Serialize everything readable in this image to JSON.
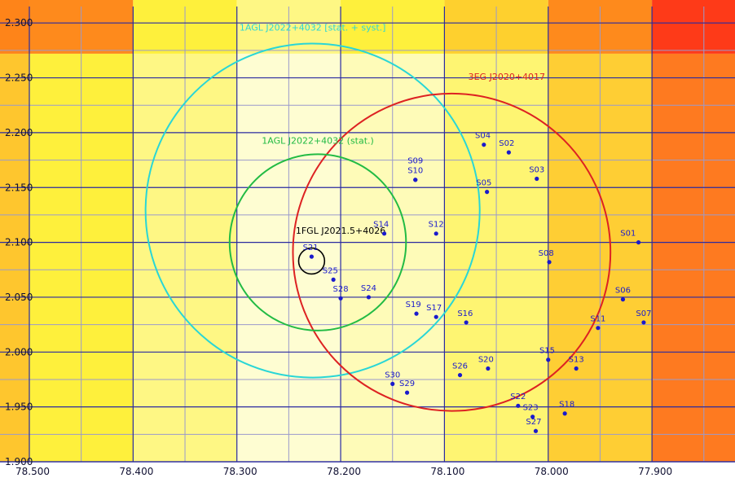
{
  "chart_data": {
    "type": "scatter",
    "title": "",
    "xlabel": "",
    "ylabel": "",
    "xlim": [
      78.5,
      77.82
    ],
    "ylim": [
      1.9,
      2.315
    ],
    "x_ticks": [
      {
        "value": 78.5,
        "label": "78.500"
      },
      {
        "value": 78.4,
        "label": "78.400"
      },
      {
        "value": 78.3,
        "label": "78.300"
      },
      {
        "value": 78.2,
        "label": "78.200"
      },
      {
        "value": 78.1,
        "label": "78.100"
      },
      {
        "value": 78.0,
        "label": "78.000"
      },
      {
        "value": 77.9,
        "label": "77.900"
      }
    ],
    "y_ticks": [
      {
        "value": 2.3,
        "label": "2.300"
      },
      {
        "value": 2.25,
        "label": "2.250"
      },
      {
        "value": 2.2,
        "label": "2.200"
      },
      {
        "value": 2.15,
        "label": "2.150"
      },
      {
        "value": 2.1,
        "label": "2.100"
      },
      {
        "value": 2.05,
        "label": "2.050"
      },
      {
        "value": 2.0,
        "label": "2.000"
      },
      {
        "value": 1.95,
        "label": "1.950"
      },
      {
        "value": 1.9,
        "label": "1.900"
      }
    ],
    "minor_x_grid": [
      78.45,
      78.35,
      78.25,
      78.15,
      78.05,
      77.95,
      77.85
    ],
    "minor_y_grid": [
      2.275,
      2.225,
      2.175,
      2.125,
      2.075,
      2.025,
      1.975,
      1.925
    ],
    "background_bands": [
      {
        "x_from": 78.5,
        "x_to": 78.4,
        "color": "#fef03c"
      },
      {
        "x_from": 78.4,
        "x_to": 78.3,
        "color": "#fef784"
      },
      {
        "x_from": 78.3,
        "x_to": 78.2,
        "color": "#fefdd2"
      },
      {
        "x_from": 78.2,
        "x_to": 78.1,
        "color": "#fefbb8"
      },
      {
        "x_from": 78.1,
        "x_to": 78.0,
        "color": "#fef572"
      },
      {
        "x_from": 78.0,
        "x_to": 77.9,
        "color": "#fece34"
      },
      {
        "x_from": 77.9,
        "x_to": 77.82,
        "color": "#fe7a20"
      }
    ],
    "top_strip": [
      {
        "x_from": 78.5,
        "x_to": 78.4,
        "color": "#fe8a1c"
      },
      {
        "x_from": 78.4,
        "x_to": 78.3,
        "color": "#fef03c"
      },
      {
        "x_from": 78.3,
        "x_to": 78.2,
        "color": "#fef784"
      },
      {
        "x_from": 78.2,
        "x_to": 78.1,
        "color": "#fef03c"
      },
      {
        "x_from": 78.1,
        "x_to": 78.0,
        "color": "#fed02e"
      },
      {
        "x_from": 78.0,
        "x_to": 77.9,
        "color": "#fe8a1c"
      },
      {
        "x_from": 77.9,
        "x_to": 77.82,
        "color": "#fe3a18"
      }
    ],
    "circles": [
      {
        "name": "1AGL J2022+4032 [stat. + syst.]",
        "cx": 78.227,
        "cy": 2.129,
        "r": 0.161,
        "color": "#29d6d6",
        "label_x": 78.227,
        "label_y": 2.293
      },
      {
        "name": "3EG J2020+4017",
        "cx": 78.093,
        "cy": 2.091,
        "r": 0.153,
        "color": "#dd2222",
        "label_x": 78.04,
        "label_y": 2.248
      },
      {
        "name": "1AGL J2022+4032 (stat.)",
        "cx": 78.222,
        "cy": 2.1,
        "r": 0.085,
        "color": "#22bb44",
        "label_x": 78.222,
        "label_y": 2.19
      },
      {
        "name": "1FGL J2021.5+4026",
        "cx": 78.228,
        "cy": 2.083,
        "r": 0.0125,
        "color": "#000000",
        "label_x": 78.2,
        "label_y": 2.108
      }
    ],
    "points": [
      {
        "name": "S01",
        "x": 77.913,
        "y": 2.1,
        "lx": 77.923,
        "ly": 2.106
      },
      {
        "name": "S02",
        "x": 78.038,
        "y": 2.182,
        "lx": 78.04,
        "ly": 2.188
      },
      {
        "name": "S03",
        "x": 78.011,
        "y": 2.158,
        "lx": 78.011,
        "ly": 2.164
      },
      {
        "name": "S04",
        "x": 78.062,
        "y": 2.189,
        "lx": 78.063,
        "ly": 2.195
      },
      {
        "name": "S05",
        "x": 78.059,
        "y": 2.146,
        "lx": 78.062,
        "ly": 2.152
      },
      {
        "name": "S06",
        "x": 77.928,
        "y": 2.048,
        "lx": 77.928,
        "ly": 2.054
      },
      {
        "name": "S07",
        "x": 77.908,
        "y": 2.027,
        "lx": 77.908,
        "ly": 2.033
      },
      {
        "name": "S08",
        "x": 77.999,
        "y": 2.082,
        "lx": 78.002,
        "ly": 2.088
      },
      {
        "name": "S09",
        "x": 78.128,
        "y": 2.157,
        "lx": 78.128,
        "ly": 2.172
      },
      {
        "name": "S10",
        "x": 78.128,
        "y": 2.157,
        "lx": 78.128,
        "ly": 2.163
      },
      {
        "name": "S11",
        "x": 77.952,
        "y": 2.022,
        "lx": 77.952,
        "ly": 2.028
      },
      {
        "name": "S12",
        "x": 78.108,
        "y": 2.108,
        "lx": 78.108,
        "ly": 2.114
      },
      {
        "name": "S13",
        "x": 77.973,
        "y": 1.985,
        "lx": 77.973,
        "ly": 1.991
      },
      {
        "name": "S14",
        "x": 78.158,
        "y": 2.108,
        "lx": 78.161,
        "ly": 2.114
      },
      {
        "name": "S15",
        "x": 78.0,
        "y": 1.993,
        "lx": 78.001,
        "ly": 1.999
      },
      {
        "name": "S16",
        "x": 78.079,
        "y": 2.027,
        "lx": 78.08,
        "ly": 2.033
      },
      {
        "name": "S17",
        "x": 78.108,
        "y": 2.032,
        "lx": 78.11,
        "ly": 2.038
      },
      {
        "name": "S18",
        "x": 77.984,
        "y": 1.944,
        "lx": 77.982,
        "ly": 1.95
      },
      {
        "name": "S19",
        "x": 78.127,
        "y": 2.035,
        "lx": 78.13,
        "ly": 2.041
      },
      {
        "name": "S20",
        "x": 78.058,
        "y": 1.985,
        "lx": 78.06,
        "ly": 1.991
      },
      {
        "name": "S21",
        "x": 78.228,
        "y": 2.087,
        "lx": 78.229,
        "ly": 2.093
      },
      {
        "name": "S22",
        "x": 78.029,
        "y": 1.951,
        "lx": 78.029,
        "ly": 1.957
      },
      {
        "name": "S23",
        "x": 78.015,
        "y": 1.941,
        "lx": 78.017,
        "ly": 1.947
      },
      {
        "name": "S24",
        "x": 78.173,
        "y": 2.05,
        "lx": 78.173,
        "ly": 2.056
      },
      {
        "name": "S25",
        "x": 78.207,
        "y": 2.066,
        "lx": 78.21,
        "ly": 2.072
      },
      {
        "name": "S26",
        "x": 78.085,
        "y": 1.979,
        "lx": 78.085,
        "ly": 1.985
      },
      {
        "name": "S27",
        "x": 78.012,
        "y": 1.928,
        "lx": 78.014,
        "ly": 1.934
      },
      {
        "name": "S28",
        "x": 78.2,
        "y": 2.049,
        "lx": 78.2,
        "ly": 2.055
      },
      {
        "name": "S29",
        "x": 78.136,
        "y": 1.963,
        "lx": 78.136,
        "ly": 1.969
      },
      {
        "name": "S30",
        "x": 78.15,
        "y": 1.971,
        "lx": 78.15,
        "ly": 1.977
      }
    ],
    "grid": true,
    "colors": {
      "major_grid": "#2a2aa0",
      "minor_grid": "#9a9acc",
      "points": "#1a1acc",
      "labels": "#1a1acc",
      "axis_text": "#111133"
    }
  }
}
